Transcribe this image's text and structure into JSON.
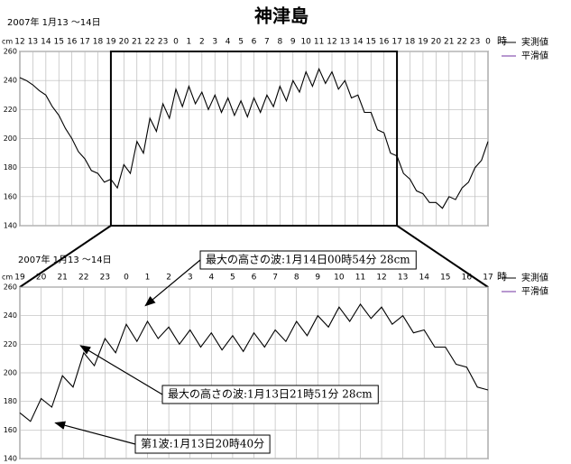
{
  "chart_data": [
    {
      "type": "line",
      "title": "神津島",
      "subtitle": "2007年  1月13 ～14日",
      "y_unit": "cm",
      "x_unit": "時",
      "xlim": [
        12,
        48
      ],
      "xticks": [
        12,
        13,
        14,
        15,
        16,
        17,
        18,
        19,
        20,
        21,
        22,
        23,
        {
          "value": 24,
          "label": "0"
        },
        {
          "value": 25,
          "label": "1"
        },
        {
          "value": 26,
          "label": "2"
        },
        {
          "value": 27,
          "label": "3"
        },
        {
          "value": 28,
          "label": "4"
        },
        {
          "value": 29,
          "label": "5"
        },
        {
          "value": 30,
          "label": "6"
        },
        {
          "value": 31,
          "label": "7"
        },
        {
          "value": 32,
          "label": "8"
        },
        {
          "value": 33,
          "label": "9"
        },
        {
          "value": 34,
          "label": "10"
        },
        {
          "value": 35,
          "label": "11"
        },
        {
          "value": 36,
          "label": "12"
        },
        {
          "value": 37,
          "label": "13"
        },
        {
          "value": 38,
          "label": "14"
        },
        {
          "value": 39,
          "label": "15"
        },
        {
          "value": 40,
          "label": "16"
        },
        {
          "value": 41,
          "label": "17"
        },
        {
          "value": 42,
          "label": "18"
        },
        {
          "value": 43,
          "label": "19"
        },
        {
          "value": 44,
          "label": "20"
        },
        {
          "value": 45,
          "label": "21"
        },
        {
          "value": 46,
          "label": "22"
        },
        {
          "value": 47,
          "label": "23"
        },
        {
          "value": 48,
          "label": "0"
        }
      ],
      "ylim": [
        140,
        260
      ],
      "yticks": [
        140,
        160,
        180,
        200,
        220,
        240,
        260
      ],
      "grid": true,
      "zoom_range": [
        19,
        41
      ],
      "x": [
        12,
        12.5,
        13,
        13.5,
        14,
        14.5,
        15,
        15.5,
        16,
        16.5,
        17,
        17.5,
        18,
        18.5,
        19,
        19.5,
        20,
        20.5,
        21,
        21.5,
        22,
        22.5,
        23,
        23.5,
        24,
        24.5,
        25,
        25.5,
        26,
        26.5,
        27,
        27.5,
        28,
        28.5,
        29,
        29.5,
        30,
        30.5,
        31,
        31.5,
        32,
        32.5,
        33,
        33.5,
        34,
        34.5,
        35,
        35.5,
        36,
        36.5,
        37,
        37.5,
        38,
        38.5,
        39,
        39.5,
        40,
        40.5,
        41,
        41.5,
        42,
        42.5,
        43,
        43.5,
        44,
        44.5,
        45,
        45.5,
        46,
        46.5,
        47,
        47.5,
        48
      ],
      "series": [
        {
          "name": "実測値",
          "color": "#000000",
          "values": [
            242,
            240,
            237,
            233,
            230,
            222,
            216,
            207,
            200,
            191,
            186,
            178,
            176,
            170,
            172,
            166,
            182,
            176,
            198,
            190,
            214,
            205,
            224,
            214,
            234,
            222,
            236,
            224,
            232,
            220,
            230,
            218,
            228,
            216,
            226,
            215,
            228,
            218,
            230,
            222,
            236,
            226,
            240,
            232,
            246,
            236,
            248,
            238,
            246,
            234,
            240,
            228,
            230,
            218,
            218,
            206,
            204,
            190,
            188,
            176,
            172,
            164,
            162,
            156,
            156,
            152,
            160,
            158,
            166,
            170,
            180,
            185,
            198
          ]
        },
        {
          "name": "平滑値",
          "color": "#7030a0",
          "values": [
            null,
            null,
            null,
            null,
            null,
            null,
            null,
            null,
            null,
            null,
            null,
            null,
            null,
            null,
            null,
            null,
            null,
            null,
            null,
            null,
            null,
            null,
            null,
            null,
            null,
            null,
            null,
            null,
            null,
            null,
            null,
            null,
            null,
            null,
            null,
            null,
            null,
            null,
            null,
            null,
            null,
            null,
            null,
            null,
            null,
            null,
            null,
            null,
            null,
            null,
            null,
            null,
            null,
            null,
            null,
            null,
            null,
            null,
            null,
            null,
            null,
            null,
            null,
            null,
            null,
            null,
            null,
            null,
            null,
            null,
            null,
            null,
            null
          ]
        }
      ]
    },
    {
      "type": "line",
      "subtitle": "2007年  1月13 ～14日",
      "y_unit": "cm",
      "x_unit": "時",
      "xlim": [
        19,
        41
      ],
      "xticks": [
        19,
        20,
        21,
        22,
        23,
        {
          "value": 24,
          "label": "0"
        },
        {
          "value": 25,
          "label": "1"
        },
        {
          "value": 26,
          "label": "2"
        },
        {
          "value": 27,
          "label": "3"
        },
        {
          "value": 28,
          "label": "4"
        },
        {
          "value": 29,
          "label": "5"
        },
        {
          "value": 30,
          "label": "6"
        },
        {
          "value": 31,
          "label": "7"
        },
        {
          "value": 32,
          "label": "8"
        },
        {
          "value": 33,
          "label": "9"
        },
        {
          "value": 34,
          "label": "10"
        },
        {
          "value": 35,
          "label": "11"
        },
        {
          "value": 36,
          "label": "12"
        },
        {
          "value": 37,
          "label": "13"
        },
        {
          "value": 38,
          "label": "14"
        },
        {
          "value": 39,
          "label": "15"
        },
        {
          "value": 40,
          "label": "16"
        },
        {
          "value": 41,
          "label": "17"
        }
      ],
      "ylim": [
        140,
        260
      ],
      "yticks": [
        140,
        160,
        180,
        200,
        220,
        240,
        260
      ],
      "grid": true,
      "x": [
        19,
        19.5,
        20,
        20.5,
        21,
        21.5,
        22,
        22.5,
        23,
        23.5,
        24,
        24.5,
        25,
        25.5,
        26,
        26.5,
        27,
        27.5,
        28,
        28.5,
        29,
        29.5,
        30,
        30.5,
        31,
        31.5,
        32,
        32.5,
        33,
        33.5,
        34,
        34.5,
        35,
        35.5,
        36,
        36.5,
        37,
        37.5,
        38,
        38.5,
        39,
        39.5,
        40,
        40.5,
        41
      ],
      "series": [
        {
          "name": "実測値",
          "color": "#000000",
          "values": [
            172,
            166,
            182,
            176,
            198,
            190,
            214,
            205,
            224,
            214,
            234,
            222,
            236,
            224,
            232,
            220,
            230,
            218,
            228,
            216,
            226,
            215,
            228,
            218,
            230,
            222,
            236,
            226,
            240,
            232,
            246,
            236,
            248,
            238,
            246,
            234,
            240,
            228,
            230,
            218,
            218,
            206,
            204,
            190,
            188
          ]
        },
        {
          "name": "平滑値",
          "color": "#7030a0",
          "values": [
            null,
            null,
            null,
            null,
            null,
            null,
            null,
            null,
            null,
            null,
            null,
            null,
            null,
            null,
            null,
            null,
            null,
            null,
            null,
            null,
            null,
            null,
            null,
            null,
            null,
            null,
            null,
            null,
            null,
            null,
            null,
            null,
            null,
            null,
            null,
            null,
            null,
            null,
            null,
            null,
            null,
            null,
            null,
            null,
            null
          ]
        }
      ],
      "annotations": [
        {
          "text": "最大の高さの波:1月14日00時54分  28cm",
          "x": 24.9,
          "y": 247
        },
        {
          "text": "最大の高さの波:1月13日21時51分  28cm",
          "x": 21.85,
          "y": 219
        },
        {
          "text": "第1波:1月13日20時40分",
          "x": 20.67,
          "y": 165
        }
      ]
    }
  ]
}
